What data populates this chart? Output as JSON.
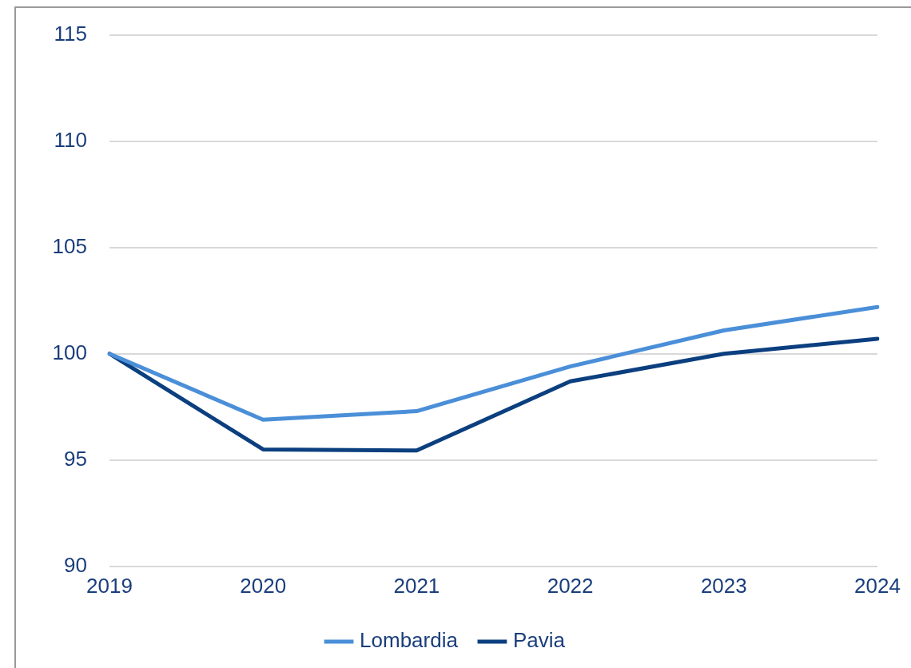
{
  "chart_data": {
    "type": "line",
    "categories": [
      "2019",
      "2020",
      "2021",
      "2022",
      "2023",
      "2024"
    ],
    "series": [
      {
        "name": "Lombardia",
        "color": "#4a8fd8",
        "values": [
          100,
          96.9,
          97.3,
          99.4,
          101.1,
          102.2
        ]
      },
      {
        "name": "Pavia",
        "color": "#0b3f7f",
        "values": [
          100,
          95.5,
          95.45,
          98.7,
          100,
          100.7
        ]
      }
    ],
    "ylim": [
      90,
      115
    ],
    "yticks": [
      90,
      95,
      100,
      105,
      110,
      115
    ],
    "grid": "y",
    "legend": "bottom",
    "marker": "none",
    "line_style": "solid"
  }
}
